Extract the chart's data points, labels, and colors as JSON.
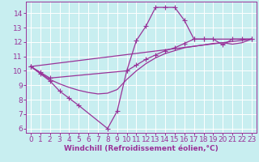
{
  "background_color": "#c8eef0",
  "grid_color": "#ffffff",
  "line_color": "#993399",
  "marker_color": "#993399",
  "xlabel": "Windchill (Refroidissement éolien,°C)",
  "xlabel_fontsize": 6.5,
  "xticks": [
    0,
    1,
    2,
    3,
    4,
    5,
    6,
    7,
    8,
    9,
    10,
    11,
    12,
    13,
    14,
    15,
    16,
    17,
    18,
    19,
    20,
    21,
    22,
    23
  ],
  "yticks": [
    6,
    7,
    8,
    9,
    10,
    11,
    12,
    13,
    14
  ],
  "xlim": [
    -0.5,
    23.5
  ],
  "ylim": [
    5.7,
    14.8
  ],
  "tick_fontsize": 6.5,
  "curves": [
    {
      "x": [
        0,
        1,
        2,
        3,
        4,
        5,
        8,
        9,
        10,
        11,
        12,
        13,
        14,
        15,
        16,
        17,
        18,
        23
      ],
      "y": [
        10.3,
        9.8,
        9.3,
        8.6,
        8.1,
        7.6,
        6.0,
        7.2,
        10.0,
        12.1,
        13.1,
        14.4,
        14.4,
        14.4,
        13.5,
        12.2,
        12.2,
        12.2
      ],
      "marker": "+",
      "markersize": 4,
      "linewidth": 0.9,
      "zorder": 3
    },
    {
      "x": [
        0,
        1,
        2,
        10,
        11,
        12,
        13,
        14,
        15,
        16,
        17,
        18,
        19,
        20,
        21,
        22,
        23
      ],
      "y": [
        10.3,
        9.9,
        9.5,
        10.0,
        10.4,
        10.8,
        11.1,
        11.4,
        11.6,
        11.9,
        12.2,
        12.2,
        12.2,
        11.8,
        12.2,
        12.2,
        12.2
      ],
      "marker": "+",
      "markersize": 4,
      "linewidth": 0.9,
      "zorder": 3
    },
    {
      "x": [
        0,
        23
      ],
      "y": [
        10.3,
        12.2
      ],
      "marker": null,
      "markersize": 0,
      "linewidth": 0.9,
      "zorder": 2
    },
    {
      "x": [
        0,
        1,
        2,
        3,
        4,
        5,
        6,
        7,
        8,
        9,
        10,
        11,
        12,
        13,
        14,
        15,
        16,
        17,
        18,
        19,
        20,
        21,
        22,
        23
      ],
      "y": [
        10.3,
        9.85,
        9.4,
        9.1,
        8.85,
        8.65,
        8.5,
        8.4,
        8.45,
        8.7,
        9.4,
        10.0,
        10.5,
        10.9,
        11.2,
        11.4,
        11.6,
        11.7,
        11.8,
        11.9,
        11.95,
        11.85,
        11.95,
        12.2
      ],
      "marker": null,
      "markersize": 0,
      "linewidth": 0.9,
      "zorder": 2
    }
  ]
}
